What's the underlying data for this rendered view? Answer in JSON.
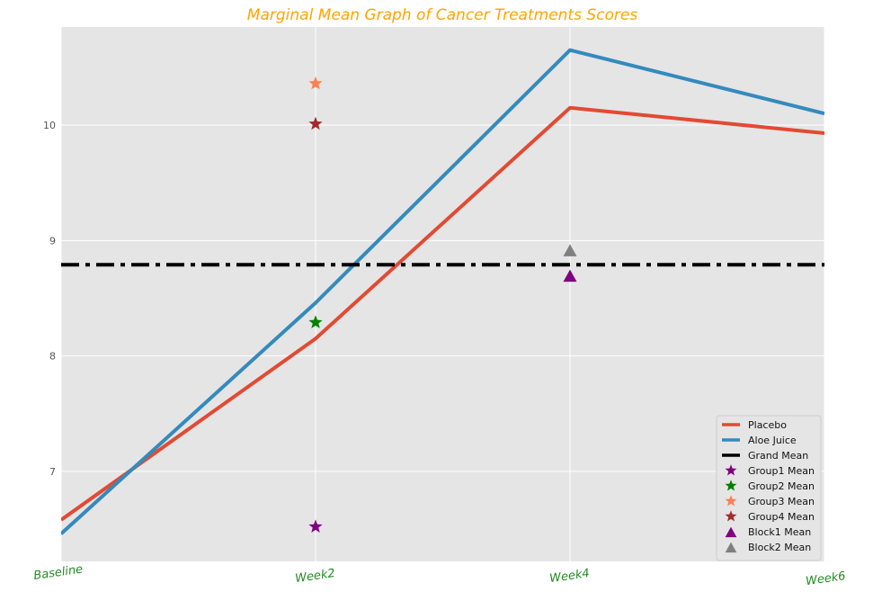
{
  "chart_data": {
    "type": "line",
    "title": "Marginal Mean Graph of Cancer Treatments Scores",
    "xlabel": "",
    "ylabel": "",
    "categories": [
      "Baseline",
      "Week2",
      "Week4",
      "Week6"
    ],
    "ylim": [
      6.22,
      10.85
    ],
    "yticks": [
      7,
      8,
      9,
      10
    ],
    "grid": true,
    "legend_placement": "bottom-right",
    "series": [
      {
        "name": "Placebo",
        "values": [
          6.58,
          8.15,
          10.15,
          9.93
        ],
        "color": "#e24a33"
      },
      {
        "name": "Aloe Juice",
        "values": [
          6.46,
          8.46,
          10.65,
          10.1
        ],
        "color": "#348abd"
      }
    ],
    "reference_lines": [
      {
        "name": "Grand Mean",
        "y": 8.79,
        "color": "#000000",
        "style": "dash-dot"
      }
    ],
    "markers": [
      {
        "name": "Group1 Mean",
        "x": "Week2",
        "y": 6.52,
        "color": "#800080",
        "marker": "star"
      },
      {
        "name": "Group2 Mean",
        "x": "Week2",
        "y": 8.29,
        "color": "#008000",
        "marker": "star"
      },
      {
        "name": "Group3 Mean",
        "x": "Week2",
        "y": 10.36,
        "color": "#ff7f50",
        "marker": "star"
      },
      {
        "name": "Group4 Mean",
        "x": "Week2",
        "y": 10.01,
        "color": "#a52a2a",
        "marker": "star"
      },
      {
        "name": "Block1 Mean",
        "x": "Week4",
        "y": 8.69,
        "color": "#800080",
        "marker": "triangle"
      },
      {
        "name": "Block2 Mean",
        "x": "Week4",
        "y": 8.91,
        "color": "#808080",
        "marker": "triangle"
      }
    ],
    "colors": {
      "plot_background": "#e5e5e5",
      "grid": "#ffffff",
      "title": "#ffa500",
      "xtick_labels": "#228b22"
    }
  }
}
